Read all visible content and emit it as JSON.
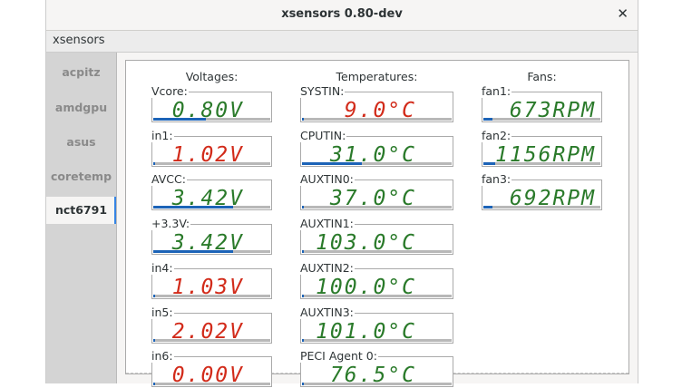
{
  "window": {
    "title": "xsensors 0.80-dev",
    "close_icon": "close-icon"
  },
  "menu": {
    "app": "xsensors"
  },
  "sidebar": {
    "items": [
      {
        "label": "acpitz"
      },
      {
        "label": "amdgpu"
      },
      {
        "label": "asus"
      },
      {
        "label": "coretemp"
      },
      {
        "label": "nct6791",
        "selected": true
      }
    ]
  },
  "colors": {
    "ok": "#2a7a2a",
    "warn": "#d22b1a",
    "bar": "#1c63b7"
  },
  "columns": [
    {
      "title": "Voltages:",
      "sensors": [
        {
          "label": "Vcore:",
          "value": "0.80V",
          "status": "ok",
          "level": 0.45
        },
        {
          "label": "in1:",
          "value": "1.02V",
          "status": "warn",
          "level": 0.01
        },
        {
          "label": "AVCC:",
          "value": "3.42V",
          "status": "ok",
          "level": 0.68
        },
        {
          "label": "+3.3V:",
          "value": "3.42V",
          "status": "ok",
          "level": 0.68
        },
        {
          "label": "in4:",
          "value": "1.03V",
          "status": "warn",
          "level": 0.01
        },
        {
          "label": "in5:",
          "value": "2.02V",
          "status": "warn",
          "level": 0.01
        },
        {
          "label": "in6:",
          "value": "0.00V",
          "status": "warn",
          "level": 0.0
        }
      ]
    },
    {
      "title": "Temperatures:",
      "sensors": [
        {
          "label": "SYSTIN:",
          "value": "9.0°C",
          "status": "warn",
          "level": 0.01
        },
        {
          "label": "CPUTIN:",
          "value": "31.0°C",
          "status": "ok",
          "level": 0.4
        },
        {
          "label": "AUXTIN0:",
          "value": "37.0°C",
          "status": "ok",
          "level": 0.01
        },
        {
          "label": "AUXTIN1:",
          "value": "103.0°C",
          "status": "ok",
          "level": 0.01
        },
        {
          "label": "AUXTIN2:",
          "value": "100.0°C",
          "status": "ok",
          "level": 0.01
        },
        {
          "label": "AUXTIN3:",
          "value": "101.0°C",
          "status": "ok",
          "level": 0.01
        },
        {
          "label": "PECI Agent 0:",
          "value": "76.5°C",
          "status": "ok",
          "level": 0.01
        }
      ]
    },
    {
      "title": "Fans:",
      "sensors": [
        {
          "label": "fan1:",
          "value": "673RPM",
          "status": "ok",
          "level": 0.08
        },
        {
          "label": "fan2:",
          "value": "1156RPM",
          "status": "ok",
          "level": 0.1
        },
        {
          "label": "fan3:",
          "value": "692RPM",
          "status": "ok",
          "level": 0.08
        }
      ]
    }
  ]
}
